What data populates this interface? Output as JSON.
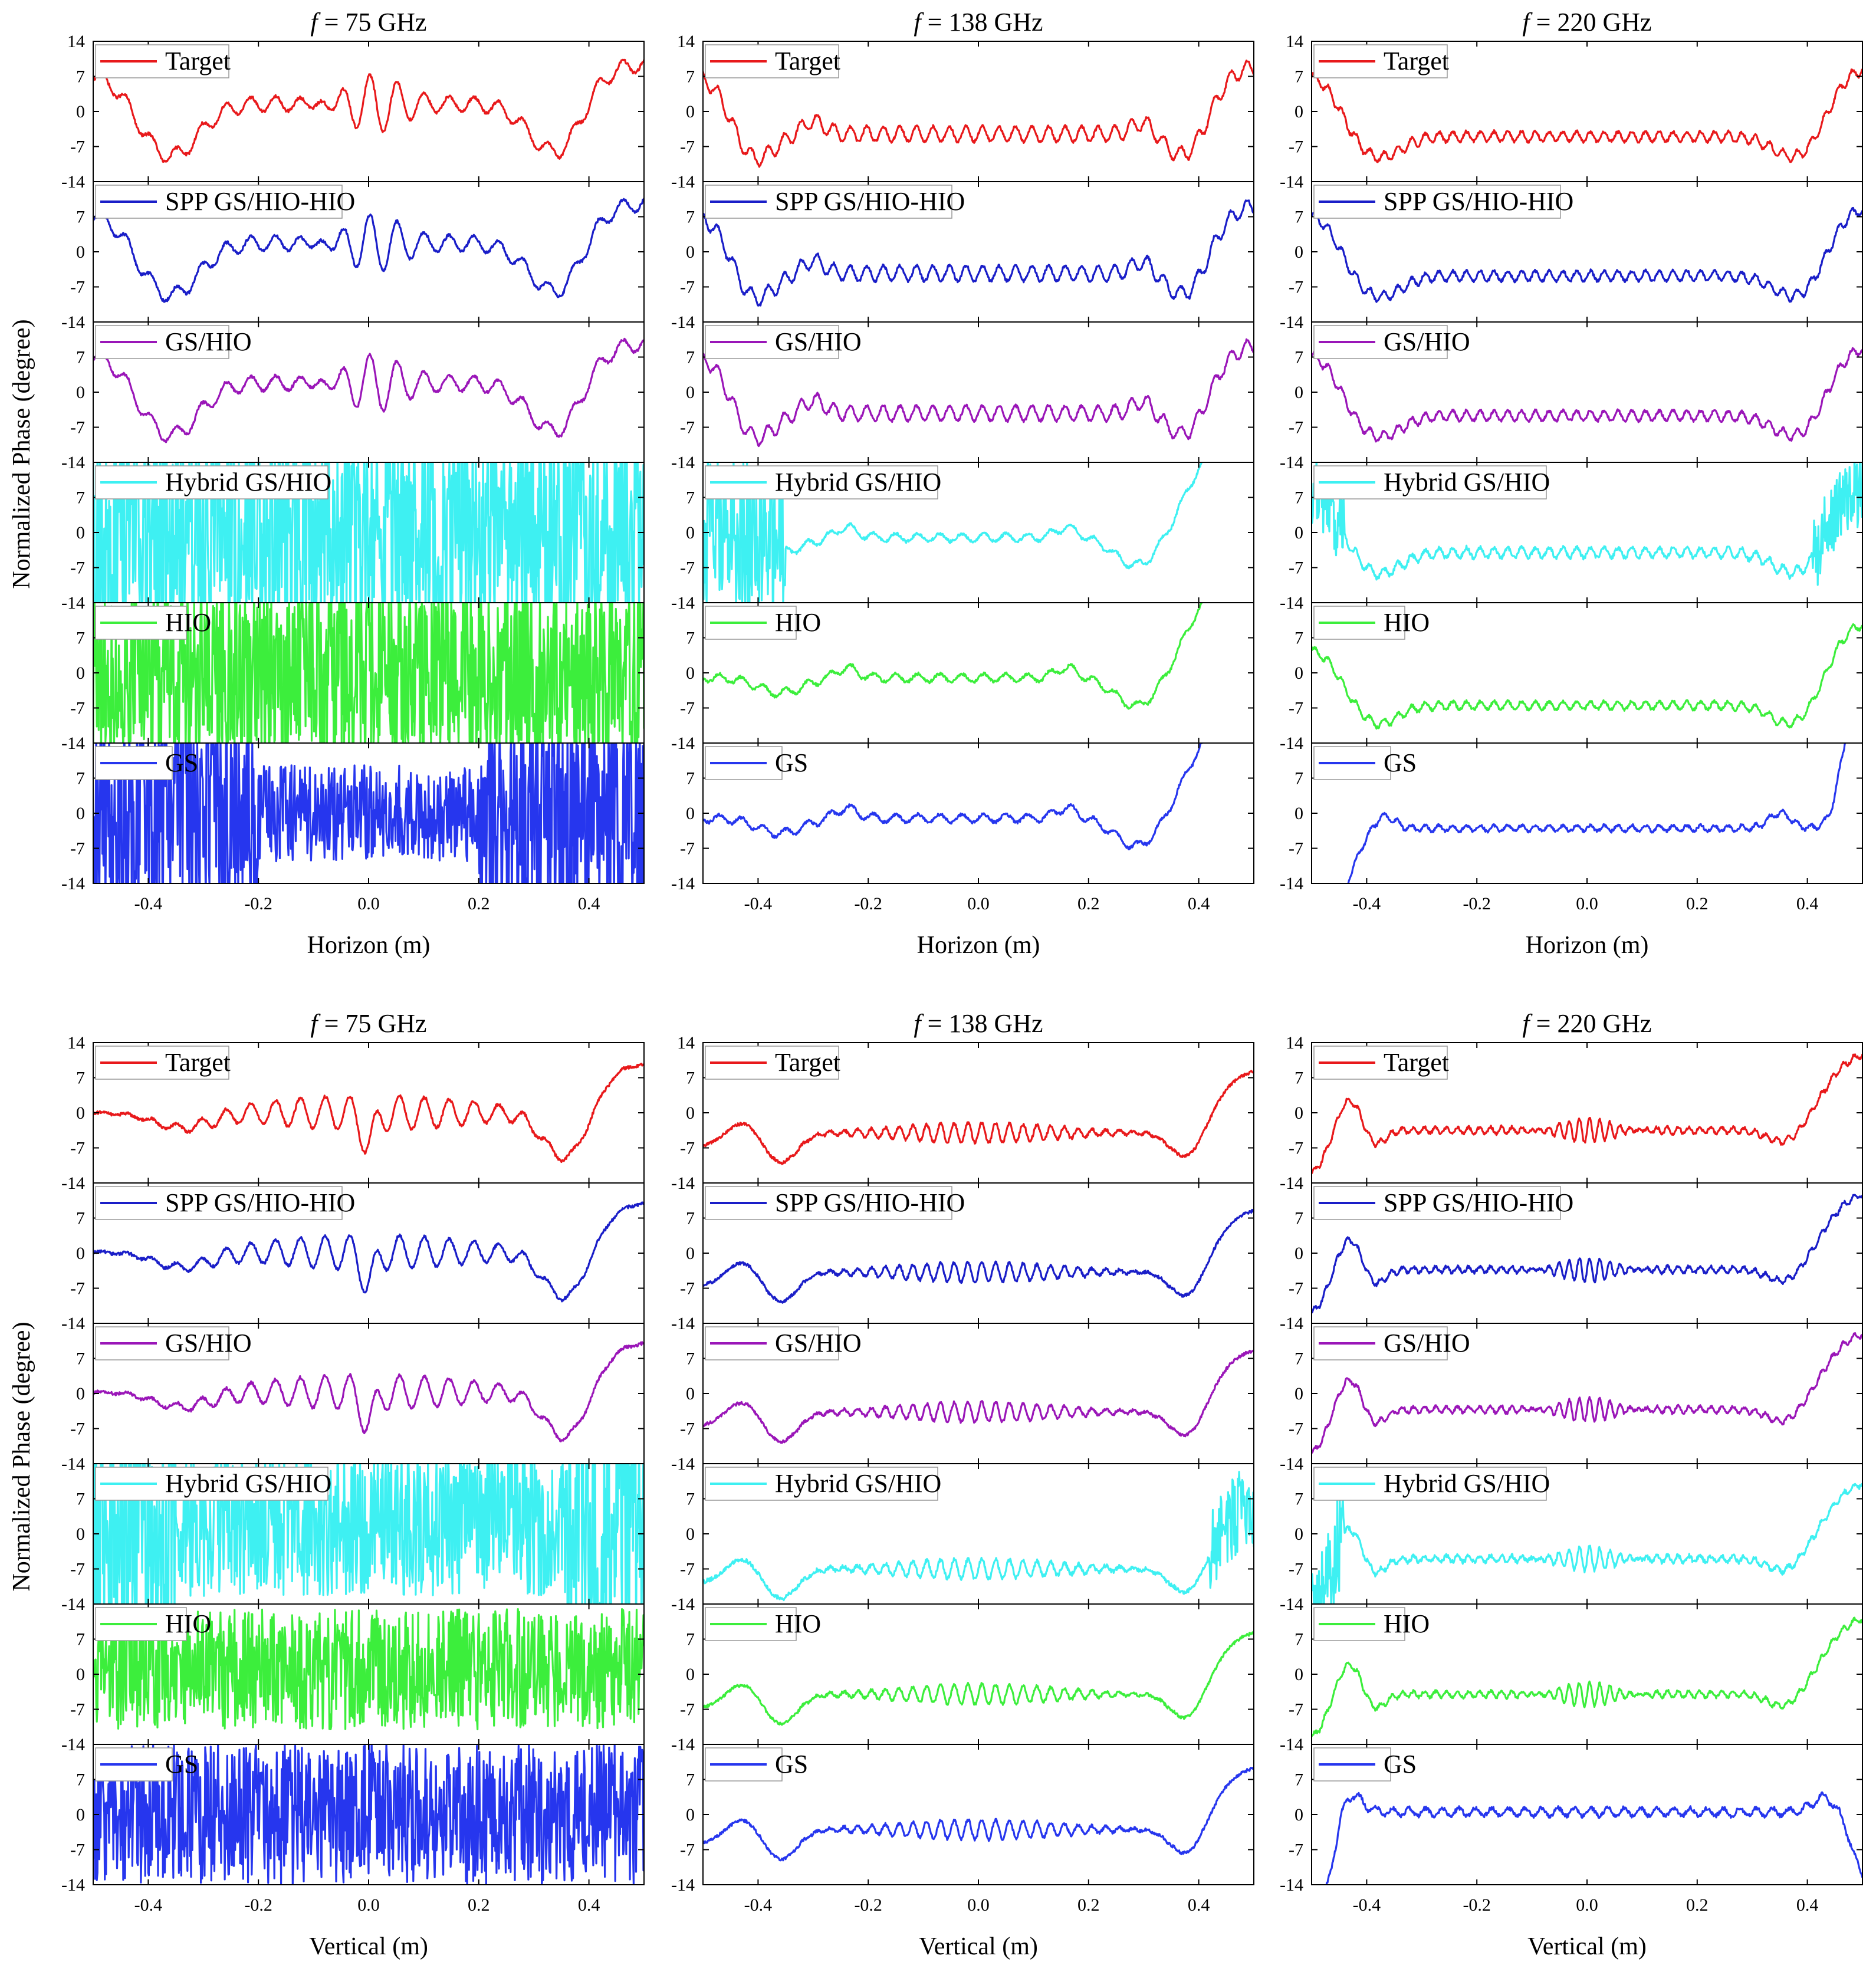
{
  "figure": {
    "y_axis_title": "Normalized Phase (degree)",
    "row_names": [
      "Horizon",
      "Vertical"
    ],
    "col_names": [
      "75 GHz",
      "138 GHz",
      "220 GHz"
    ]
  },
  "chart_data": {
    "type": "line",
    "layout": "2 groups (Horizon, Vertical) x 3 frequency columns x 6 stacked panels",
    "x_label_horizon": "Horizon (m)",
    "x_label_vertical": "Vertical (m)",
    "xlim": [
      -0.5,
      0.5
    ],
    "x_ticks": [
      "-0.4",
      "-0.2",
      "0.0",
      "0.2",
      "0.4"
    ],
    "ylim": [
      -14,
      14
    ],
    "y_ticks": [
      "-14",
      "-7",
      "0",
      "7",
      "14"
    ],
    "column_titles": [
      "f = 75 GHz",
      "f = 138 GHz",
      "f = 220 GHz"
    ],
    "title_f": "f",
    "title_units": [
      "= 75 GHz",
      "= 138 GHz",
      "= 220 GHz"
    ],
    "grid": false,
    "legend_placement": "top-left of each panel",
    "series": [
      {
        "name": "Target",
        "color": "#e8191b"
      },
      {
        "name": "SPP GS/HIO-HIO",
        "color": "#1a1ec8"
      },
      {
        "name": "GS/HIO",
        "color": "#9a16b8"
      },
      {
        "name": "Hybrid GS/HIO",
        "color": "#3ef0f2"
      },
      {
        "name": "HIO",
        "color": "#3cee3c"
      },
      {
        "name": "GS",
        "color": "#2636ee"
      }
    ],
    "panels_summary": [
      {
        "row": "Horizon",
        "freq": "75 GHz",
        "Target": {
          "edge_high": 9,
          "trough_x": [
            -0.36,
            0.35
          ],
          "trough_y": -9,
          "center_swing": 5.5
        },
        "Hybrid GS/HIO": "saturated noise across full range",
        "HIO": "saturated noise across full range",
        "GS": "saturated noise, partial recovery in center"
      },
      {
        "row": "Horizon",
        "freq": "138 GHz",
        "Target": {
          "edge_high": 9.5,
          "trough_x": [
            -0.41,
            0.38
          ],
          "trough_y": -10.5,
          "plateau": -4.5
        },
        "Hybrid GS/HIO": "noise for x < -0.35, smooth plateau -1 elsewhere",
        "HIO": "smooth plateau -1, diverges at edges",
        "GS": "smooth plateau -1, diverges at edges"
      },
      {
        "row": "Horizon",
        "freq": "220 GHz",
        "Target": {
          "edge_high": 9,
          "trough_x": [
            -0.38,
            0.38
          ],
          "trough_y": -9.5,
          "plateau": -5
        },
        "Hybrid GS/HIO": "noise near edges, plateau -4",
        "HIO": "plateau -6.5, edges to 7 / -10",
        "GS": "plateau -3, edges diverge"
      },
      {
        "row": "Vertical",
        "freq": "75 GHz",
        "Target": {
          "edge_high": 9.5,
          "trough_x": [
            0.35
          ],
          "trough_y": -10,
          "center_swing": 4
        },
        "Hybrid GS/HIO": "saturated noise across full range",
        "HIO": "saturated noise across full range",
        "GS": "saturated noise across full range"
      },
      {
        "row": "Vertical",
        "freq": "138 GHz",
        "Target": {
          "edge_high": 9,
          "trough_x": [
            -0.36,
            0.38
          ],
          "trough_y": -9.5,
          "plateau": -4
        },
        "Hybrid GS/HIO": "plateau -7, noise at x > 0.4",
        "HIO": "plateau -4, rises to 8 at right edge",
        "GS": "plateau -4, rises to 11 at right edge"
      },
      {
        "row": "Vertical",
        "freq": "220 GHz",
        "Target": {
          "edge_high": 13,
          "peak_left_x": -0.43,
          "peak_left_y": 3,
          "plateau": -3.5
        },
        "Hybrid GS/HIO": "noise at left edge, plateau -5",
        "HIO": "plateau -4, rises to 12 at right edge",
        "GS": "plateau 0.5, drops at both edges"
      }
    ]
  }
}
